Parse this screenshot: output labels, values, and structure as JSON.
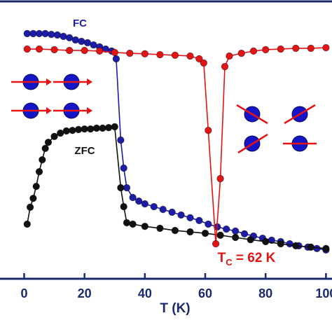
{
  "chart_data": {
    "type": "scatter-line",
    "x_label": "T (K)",
    "xlim": [
      -8,
      102
    ],
    "xticks": [
      0,
      20,
      40,
      60,
      80,
      100
    ],
    "ylim": [
      0,
      1
    ],
    "tc_label": {
      "main": "T",
      "subscript": "C",
      "rest": " = 62 K"
    },
    "series": [
      {
        "name": "FC",
        "color": "#1c1ca8",
        "x": [
          1,
          3,
          5,
          7,
          9,
          11,
          13,
          15,
          17,
          19,
          21,
          23,
          25,
          27,
          29,
          30.5,
          32,
          33,
          34,
          36,
          38,
          40,
          43,
          46,
          49,
          52,
          55,
          58,
          61,
          64,
          67,
          70,
          73,
          76,
          79,
          82,
          85,
          88,
          91,
          94,
          97,
          100
        ],
        "values": [
          0.884,
          0.884,
          0.884,
          0.884,
          0.881,
          0.879,
          0.874,
          0.869,
          0.861,
          0.856,
          0.851,
          0.843,
          0.836,
          0.828,
          0.821,
          0.793,
          0.5,
          0.399,
          0.328,
          0.293,
          0.28,
          0.27,
          0.26,
          0.25,
          0.24,
          0.23,
          0.22,
          0.21,
          0.197,
          0.187,
          0.179,
          0.172,
          0.162,
          0.154,
          0.146,
          0.139,
          0.134,
          0.126,
          0.119,
          0.114,
          0.109,
          0.104
        ]
      },
      {
        "name": "ZFC",
        "color": "#111111",
        "x": [
          1,
          2,
          3,
          4,
          5,
          6,
          7,
          8,
          10,
          12,
          14,
          16,
          18,
          20,
          22,
          24,
          26,
          28,
          30,
          32,
          33,
          34,
          36,
          40,
          45,
          50,
          55,
          60,
          65,
          70,
          75,
          80,
          85,
          90,
          95,
          100
        ],
        "values": [
          0.197,
          0.258,
          0.29,
          0.333,
          0.386,
          0.429,
          0.47,
          0.492,
          0.513,
          0.525,
          0.533,
          0.535,
          0.538,
          0.54,
          0.54,
          0.543,
          0.543,
          0.545,
          0.548,
          0.328,
          0.26,
          0.202,
          0.197,
          0.189,
          0.182,
          0.174,
          0.169,
          0.164,
          0.157,
          0.149,
          0.141,
          0.134,
          0.126,
          0.119,
          0.114,
          0.109
        ]
      },
      {
        "color": "#e41414",
        "x": [
          1,
          5,
          10,
          15,
          20,
          25,
          30,
          35,
          40,
          45,
          50,
          55,
          58,
          59.5,
          61,
          63.5,
          65,
          66.5,
          68,
          72,
          76,
          80,
          85,
          90,
          95,
          100
        ],
        "values": [
          0.828,
          0.828,
          0.826,
          0.823,
          0.823,
          0.821,
          0.816,
          0.813,
          0.811,
          0.808,
          0.806,
          0.803,
          0.793,
          0.778,
          0.535,
          0.126,
          0.361,
          0.765,
          0.803,
          0.813,
          0.821,
          0.826,
          0.828,
          0.831,
          0.831,
          0.833
        ]
      }
    ]
  }
}
